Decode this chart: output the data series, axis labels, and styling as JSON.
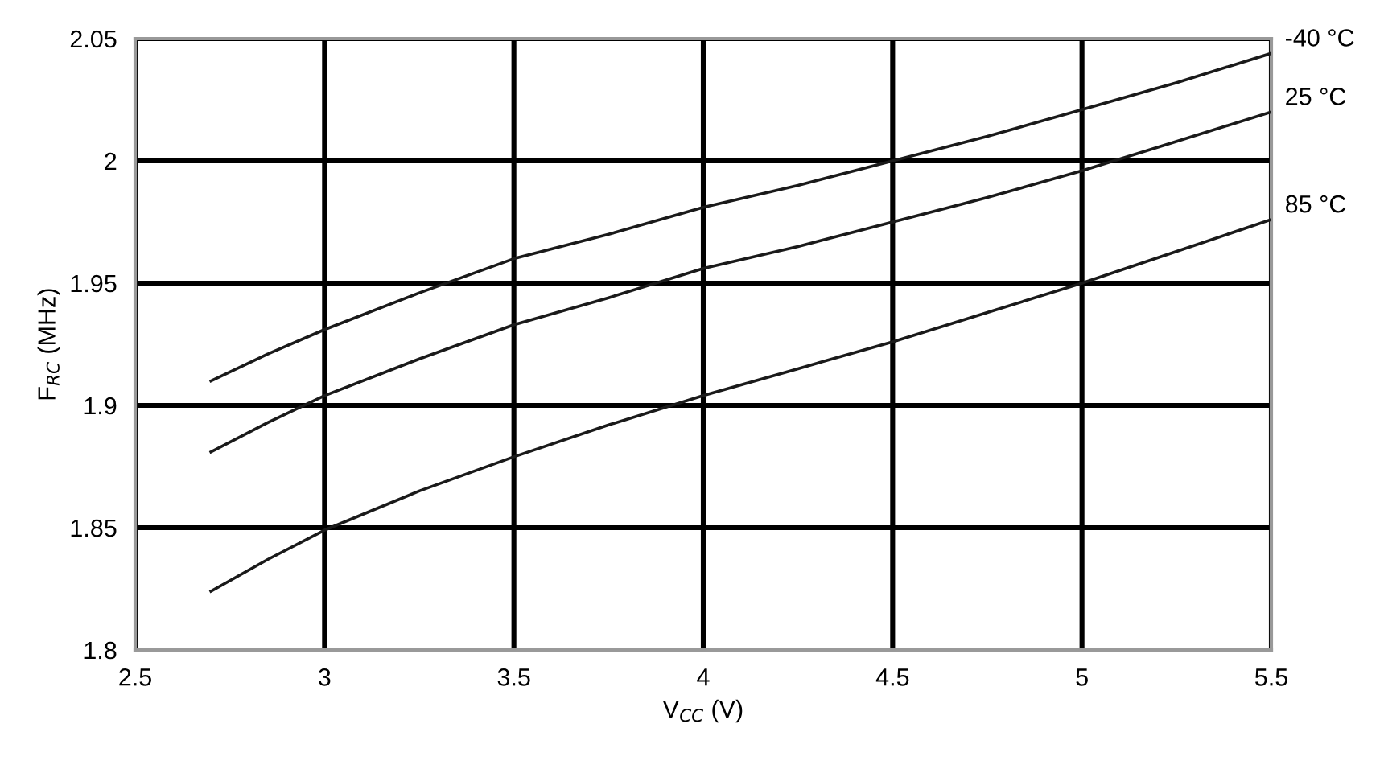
{
  "chart_data": {
    "type": "line",
    "xlabel": "V$_{CC}$ (V)",
    "ylabel": "F$_{RC}$ (MHz)",
    "x": [
      2.7,
      2.85,
      3,
      3.25,
      3.5,
      3.75,
      4,
      4.25,
      4.5,
      4.75,
      5,
      5.25,
      5.5
    ],
    "series": [
      {
        "name": "-40 °C",
        "color": "#1a1a1a",
        "values": [
          1.91,
          1.921,
          1.931,
          1.946,
          1.96,
          1.97,
          1.981,
          1.99,
          2.0,
          2.01,
          2.021,
          2.032,
          2.044
        ]
      },
      {
        "name": "25 °C",
        "color": "#1a1a1a",
        "values": [
          1.881,
          1.893,
          1.904,
          1.919,
          1.933,
          1.944,
          1.956,
          1.965,
          1.975,
          1.985,
          1.996,
          2.008,
          2.02
        ]
      },
      {
        "name": "85 °C",
        "color": "#1a1a1a",
        "values": [
          1.824,
          1.837,
          1.849,
          1.865,
          1.879,
          1.892,
          1.904,
          1.915,
          1.926,
          1.938,
          1.95,
          1.963,
          1.976
        ]
      }
    ],
    "xlim": [
      2.5,
      5.5
    ],
    "xticks": [
      2.5,
      3,
      3.5,
      4,
      4.5,
      5,
      5.5
    ],
    "ylim": [
      1.8,
      2.05
    ],
    "yticks": [
      1.8,
      1.85,
      1.9,
      1.95,
      2,
      2.05
    ],
    "grid": true,
    "legend": false,
    "marker": "none",
    "line_style": "solid"
  }
}
